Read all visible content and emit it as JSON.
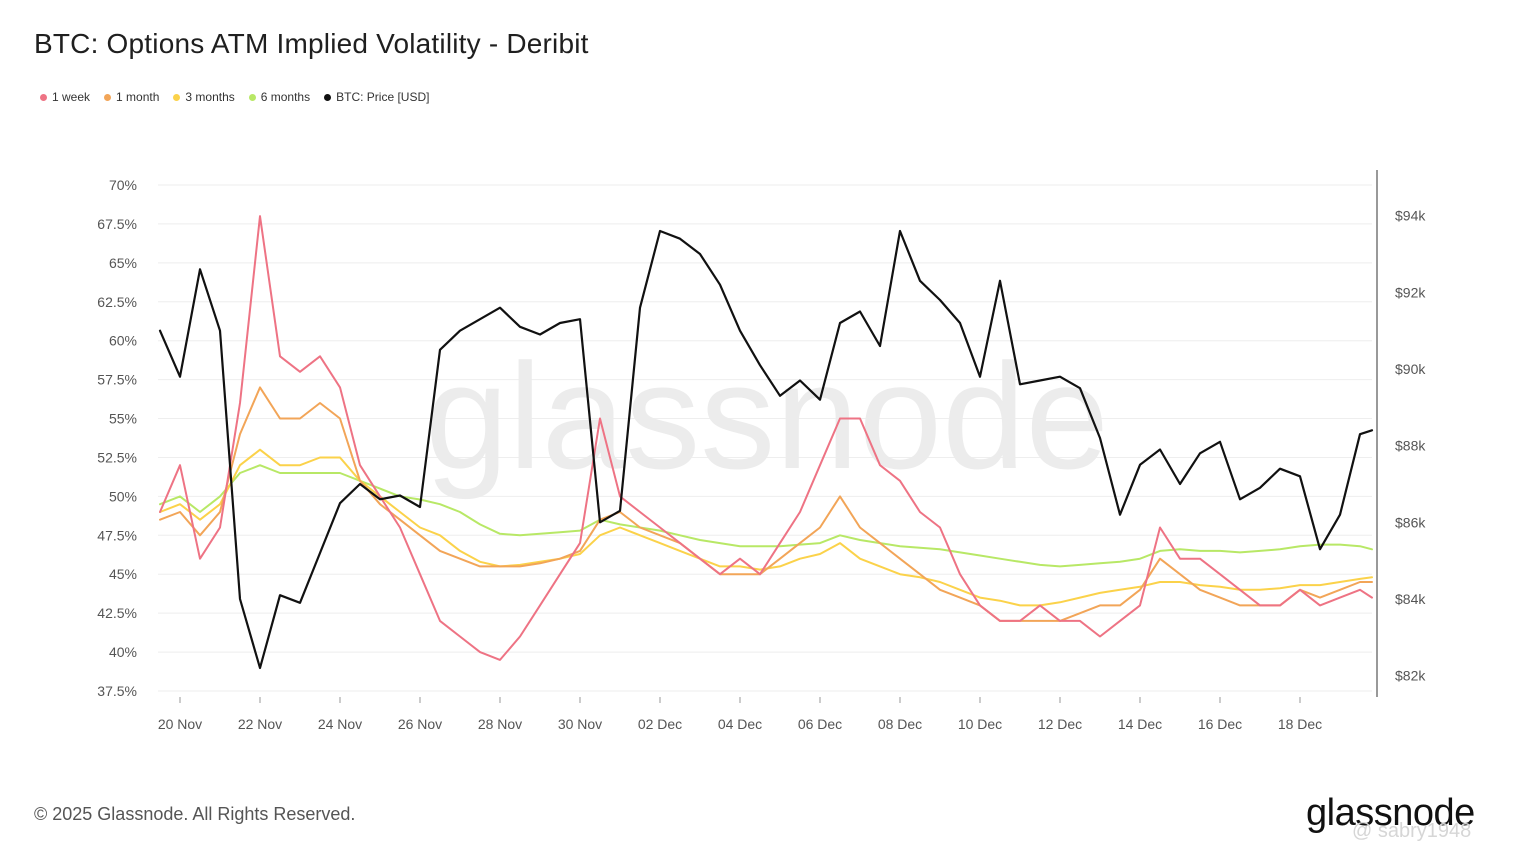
{
  "colors": {
    "one_week": "#ee7384",
    "one_month": "#f2a558",
    "three_months": "#fbd24a",
    "six_months": "#b8e866",
    "price": "#111111",
    "grid": "#eeeeee",
    "watermark": "#ececec"
  },
  "footer": {
    "copyright": "© 2025 Glassnode. All Rights Reserved.",
    "logo": "glassnode",
    "user_watermark": "@ sabry1948"
  },
  "chart_data": {
    "type": "line",
    "title": "BTC: Options ATM Implied Volatility - Deribit",
    "watermark": "glassnode",
    "legend": [
      "1 week",
      "1 month",
      "3 months",
      "6 months",
      "BTC: Price [USD]"
    ],
    "x_ticks": [
      "20 Nov",
      "22 Nov",
      "24 Nov",
      "26 Nov",
      "28 Nov",
      "30 Nov",
      "02 Dec",
      "04 Dec",
      "06 Dec",
      "08 Dec",
      "10 Dec",
      "12 Dec",
      "14 Dec",
      "16 Dec",
      "18 Dec"
    ],
    "x_range_days": [
      -0.5,
      29.8
    ],
    "y_left_ticks": [
      "37.5%",
      "40%",
      "42.5%",
      "45%",
      "47.5%",
      "50%",
      "52.5%",
      "55%",
      "57.5%",
      "60%",
      "62.5%",
      "65%",
      "67.5%",
      "70%"
    ],
    "y_left_range": [
      37.5,
      70
    ],
    "y_right_ticks": [
      "$82k",
      "$84k",
      "$86k",
      "$88k",
      "$90k",
      "$92k",
      "$94k"
    ],
    "y_right_range": [
      81600,
      94800
    ],
    "x": [
      -0.5,
      0,
      0.5,
      1,
      1.5,
      2,
      2.5,
      3,
      3.5,
      4,
      4.5,
      5,
      5.5,
      6,
      6.5,
      7,
      7.5,
      8,
      8.5,
      9,
      9.5,
      10,
      10.5,
      11,
      11.5,
      12,
      12.5,
      13,
      13.5,
      14,
      14.5,
      15,
      15.5,
      16,
      16.5,
      17,
      17.5,
      18,
      18.5,
      19,
      19.5,
      20,
      20.5,
      21,
      21.5,
      22,
      22.5,
      23,
      23.5,
      24,
      24.5,
      25,
      25.5,
      26,
      26.5,
      27,
      27.5,
      28,
      28.5,
      29,
      29.5,
      29.8
    ],
    "series": [
      {
        "name": "1 week",
        "values": [
          49,
          52,
          46,
          48,
          56,
          68,
          59,
          58,
          59,
          57,
          52,
          50,
          48,
          45,
          42,
          41,
          40,
          39.5,
          41,
          43,
          45,
          47,
          55,
          50,
          49,
          48,
          47,
          46,
          45,
          46,
          45,
          47,
          49,
          52,
          55,
          55,
          52,
          51,
          49,
          48,
          45,
          43,
          42,
          42,
          43,
          42,
          42,
          41,
          42,
          43,
          48,
          46,
          46,
          45,
          44,
          43,
          43,
          44,
          43,
          43.5,
          44,
          43.5
        ]
      },
      {
        "name": "1 month",
        "values": [
          48.5,
          49,
          47.5,
          49,
          54,
          57,
          55,
          55,
          56,
          55,
          51,
          49.5,
          48.5,
          47.5,
          46.5,
          46,
          45.5,
          45.5,
          45.5,
          45.7,
          46,
          46.5,
          48.5,
          49,
          48,
          47.5,
          47,
          46,
          45,
          45,
          45,
          46,
          47,
          48,
          50,
          48,
          47,
          46,
          45,
          44,
          43.5,
          43,
          42,
          42,
          42,
          42,
          42.5,
          43,
          43,
          44,
          46,
          45,
          44,
          43.5,
          43,
          43,
          43,
          44,
          43.5,
          44,
          44.5,
          44.5
        ]
      },
      {
        "name": "3 months",
        "values": [
          49,
          49.5,
          48.5,
          49.5,
          52,
          53,
          52,
          52,
          52.5,
          52.5,
          51,
          50,
          49,
          48,
          47.5,
          46.5,
          45.8,
          45.5,
          45.6,
          45.8,
          46,
          46.3,
          47.5,
          48,
          47.5,
          47,
          46.5,
          46,
          45.5,
          45.5,
          45.3,
          45.5,
          46,
          46.3,
          47,
          46,
          45.5,
          45,
          44.8,
          44.5,
          44,
          43.5,
          43.3,
          43,
          43,
          43.2,
          43.5,
          43.8,
          44,
          44.2,
          44.5,
          44.5,
          44.3,
          44.2,
          44,
          44,
          44.1,
          44.3,
          44.3,
          44.5,
          44.7,
          44.8
        ]
      },
      {
        "name": "6 months",
        "values": [
          49.5,
          50,
          49,
          50,
          51.5,
          52,
          51.5,
          51.5,
          51.5,
          51.5,
          51,
          50.5,
          50,
          49.8,
          49.5,
          49,
          48.2,
          47.6,
          47.5,
          47.6,
          47.7,
          47.8,
          48.5,
          48.2,
          48,
          47.8,
          47.5,
          47.2,
          47,
          46.8,
          46.8,
          46.8,
          46.9,
          47,
          47.5,
          47.2,
          47,
          46.8,
          46.7,
          46.6,
          46.4,
          46.2,
          46,
          45.8,
          45.6,
          45.5,
          45.6,
          45.7,
          45.8,
          46,
          46.5,
          46.6,
          46.5,
          46.5,
          46.4,
          46.5,
          46.6,
          46.8,
          46.9,
          46.9,
          46.8,
          46.6
        ]
      },
      {
        "name": "BTC: Price [USD]",
        "values": [
          91000,
          89800,
          92600,
          91000,
          84000,
          82200,
          84100,
          83900,
          85200,
          86500,
          87000,
          86600,
          86700,
          86400,
          90500,
          91000,
          91300,
          91600,
          91100,
          90900,
          91200,
          91300,
          86000,
          86300,
          91600,
          93600,
          93400,
          93000,
          92200,
          91000,
          90100,
          89300,
          89700,
          89200,
          91200,
          91500,
          90600,
          93600,
          92300,
          91800,
          91200,
          89800,
          92300,
          89600,
          89700,
          89800,
          89500,
          88200,
          86200,
          87500,
          87900,
          87000,
          87800,
          88100,
          86600,
          86900,
          87400,
          87200,
          85300,
          86200,
          88300,
          88400
        ]
      }
    ]
  }
}
